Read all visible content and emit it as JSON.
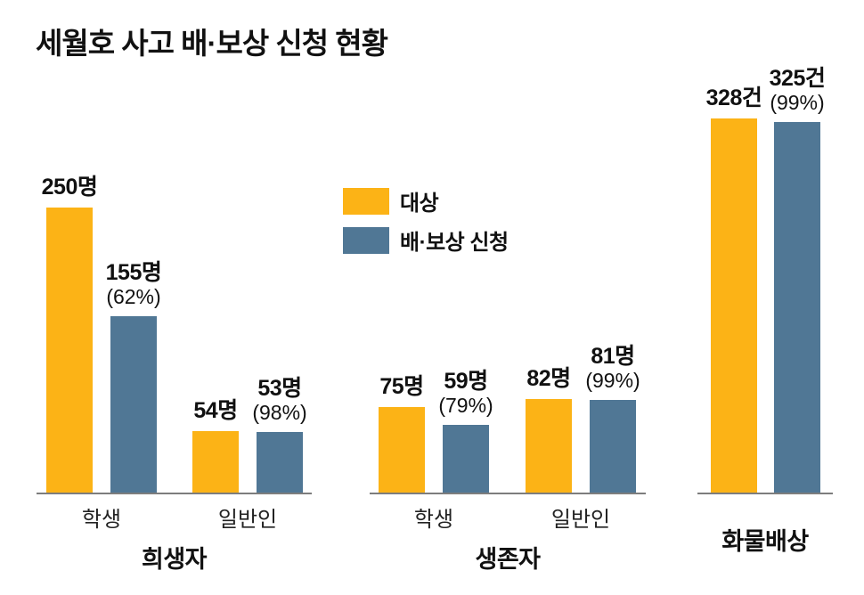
{
  "chart_data": {
    "type": "bar",
    "title": "세월호 사고 배·보상 신청 현황",
    "legend_position": "top-center",
    "background": "#ffffff",
    "axis": {
      "gridlines": false,
      "baseline_color": "#7d7d7d"
    },
    "series": [
      {
        "key": "target",
        "name": "대상",
        "color": "#FCB316"
      },
      {
        "key": "applied",
        "name": "배·보상 신청",
        "color": "#507795"
      }
    ],
    "groups": [
      {
        "title": "희생자",
        "categories": [
          "학생",
          "일반인"
        ],
        "bars": [
          {
            "series": "target",
            "category": "학생",
            "value": 250,
            "label": "250명"
          },
          {
            "series": "applied",
            "category": "학생",
            "value": 155,
            "label": "155명",
            "pct_label": "(62%)"
          },
          {
            "series": "target",
            "category": "일반인",
            "value": 54,
            "label": "54명"
          },
          {
            "series": "applied",
            "category": "일반인",
            "value": 53,
            "label": "53명",
            "pct_label": "(98%)"
          }
        ]
      },
      {
        "title": "생존자",
        "categories": [
          "학생",
          "일반인"
        ],
        "bars": [
          {
            "series": "target",
            "category": "학생",
            "value": 75,
            "label": "75명"
          },
          {
            "series": "applied",
            "category": "학생",
            "value": 59,
            "label": "59명",
            "pct_label": "(79%)"
          },
          {
            "series": "target",
            "category": "일반인",
            "value": 82,
            "label": "82명"
          },
          {
            "series": "applied",
            "category": "일반인",
            "value": 81,
            "label": "81명",
            "pct_label": "(99%)"
          }
        ]
      },
      {
        "title": "화물배상",
        "categories": [],
        "bars": [
          {
            "series": "target",
            "category": "화물배상",
            "value": 328,
            "label": "328건"
          },
          {
            "series": "applied",
            "category": "화물배상",
            "value": 325,
            "label": "325건",
            "pct_label": "(99%)"
          }
        ]
      }
    ]
  }
}
